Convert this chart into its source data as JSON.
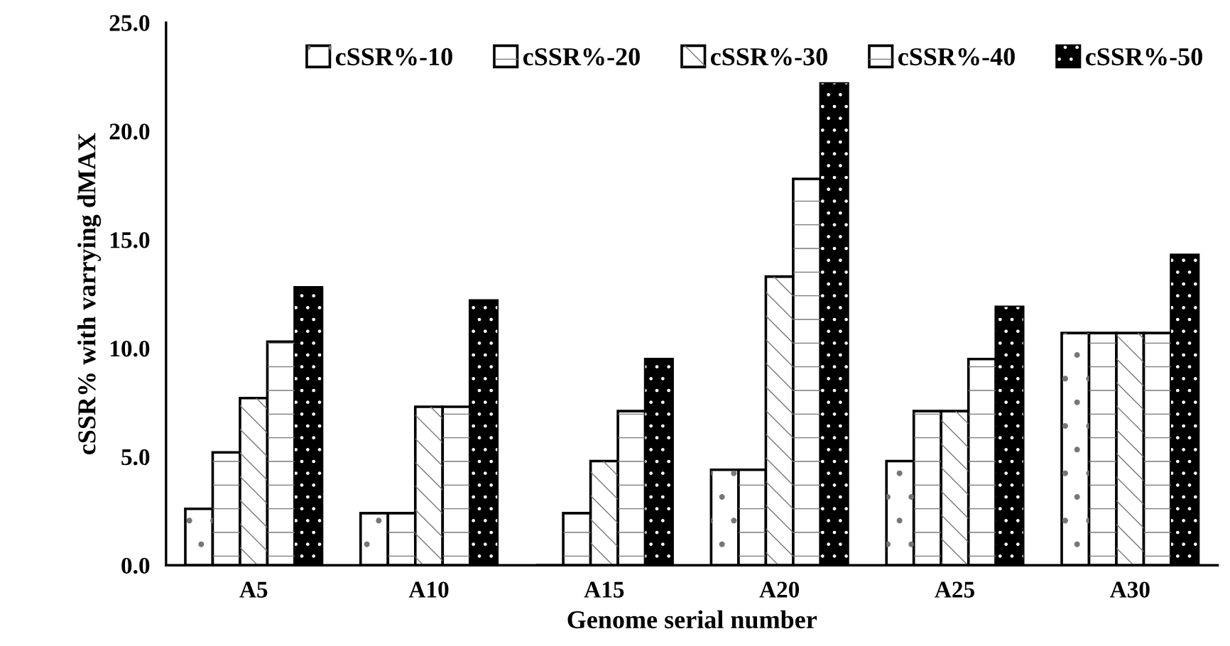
{
  "chart_data": {
    "type": "bar",
    "xlabel": "Genome serial number",
    "ylabel": "cSSR% with varrying dMAX",
    "categories": [
      "A5",
      "A10",
      "A15",
      "A20",
      "A25",
      "A30"
    ],
    "series": [
      {
        "name": "cSSR%-10",
        "color": "#ffffff",
        "values": [
          2.6,
          2.4,
          0,
          4.4,
          4.8,
          10.7
        ]
      },
      {
        "name": "cSSR%-20",
        "color": "#ffffff",
        "values": [
          5.2,
          2.4,
          2.4,
          4.4,
          7.1,
          10.7
        ]
      },
      {
        "name": "cSSR%-30",
        "color": "#ffffff",
        "values": [
          7.7,
          7.3,
          4.8,
          13.3,
          7.1,
          10.7
        ]
      },
      {
        "name": "cSSR%-40",
        "color": "#ffffff",
        "values": [
          10.3,
          7.3,
          7.1,
          17.8,
          9.5,
          10.7
        ]
      },
      {
        "name": "cSSR%-50",
        "color": "#000000",
        "values": [
          12.8,
          12.2,
          9.5,
          22.2,
          11.9,
          14.3
        ]
      }
    ],
    "ylim": [
      0,
      25
    ],
    "yticks": [
      {
        "value": 0,
        "label": "0.0"
      },
      {
        "value": 5,
        "label": "5.0"
      },
      {
        "value": 10,
        "label": "10.0"
      },
      {
        "value": 15,
        "label": "15.0"
      },
      {
        "value": 20,
        "label": "20.0"
      },
      {
        "value": 25,
        "label": "25.0"
      }
    ],
    "grid": false,
    "legend": "top"
  }
}
